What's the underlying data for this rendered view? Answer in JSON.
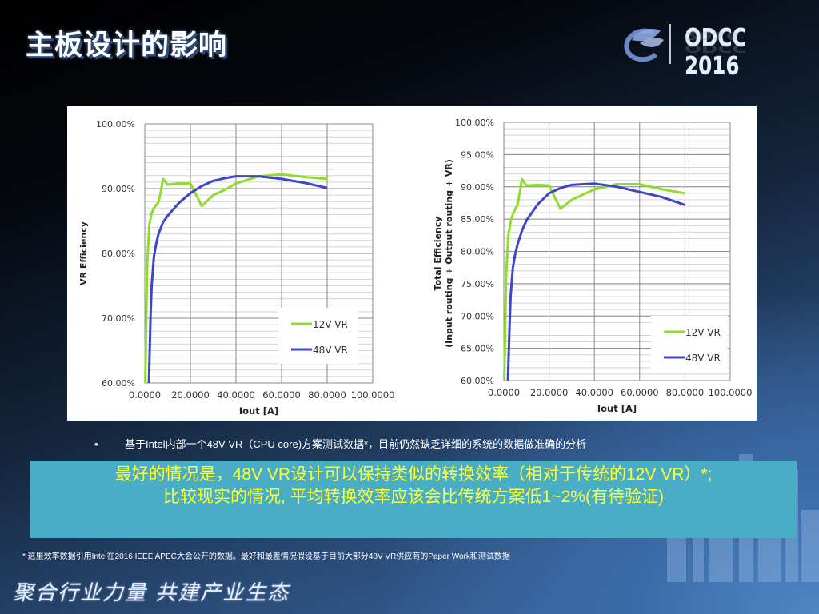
{
  "slide": {
    "title": "主板设计的影响",
    "logo_text": "ODCC 2016",
    "bullet": "基于Intel内部一个48V VR（CPU core)方案测试数据*，目前仍然缺乏详细的系统的数据做准确的分析",
    "highlight_line1": "最好的情况是，48V VR设计可以保持类似的转换效率（相对于传统的12V VR）*;",
    "highlight_line2": "比较现实的情况, 平均转换效率应该会比传统方案低1~2%(有待验证)",
    "footnote": "* 这里效率数据引用Intel在2016 IEEE APEC大会公开的数据。最好和最差情况假设基于目前大部分48V VR供应商的Paper Work和测试数据",
    "slogan": "聚合行业力量  共建产业生态"
  },
  "colors": {
    "series_12v": "#8fdc2a",
    "series_48v": "#3f45c8",
    "highlight_bg": "#49adc6",
    "highlight_text": "#ffff33"
  },
  "chart_data": [
    {
      "type": "line",
      "title": "",
      "xlabel": "Iout [A]",
      "ylabel": "VR Efficiency",
      "xlim": [
        0,
        100
      ],
      "ylim": [
        60,
        100
      ],
      "xticks": [
        "0.0000",
        "20.0000",
        "40.0000",
        "60.0000",
        "80.0000",
        "100.0000"
      ],
      "yticks": [
        "60.00%",
        "70.00%",
        "80.00%",
        "90.00%",
        "100.00%"
      ],
      "grid": true,
      "legend": {
        "position": "lower right",
        "entries": [
          "12V  VR",
          "48V  VR"
        ]
      },
      "series": [
        {
          "name": "12V  VR",
          "x": [
            0.2,
            1,
            2,
            3,
            4,
            5,
            6,
            7,
            8,
            10,
            15,
            20,
            25,
            30,
            35,
            40,
            50,
            60,
            70,
            80
          ],
          "y": [
            60,
            78,
            84.5,
            86.2,
            87,
            87.5,
            87.9,
            89.5,
            91.5,
            90.6,
            90.8,
            90.8,
            87.3,
            89,
            89.8,
            90.8,
            91.9,
            92.2,
            91.8,
            91.5
          ]
        },
        {
          "name": "48V  VR",
          "x": [
            1.8,
            2.5,
            3,
            4,
            5,
            6,
            8,
            10,
            15,
            20,
            25,
            30,
            35,
            40,
            50,
            60,
            70,
            80
          ],
          "y": [
            60,
            70,
            75,
            79.5,
            81.5,
            83,
            84.8,
            85.8,
            87.8,
            89.3,
            90.4,
            91.2,
            91.6,
            91.9,
            91.9,
            91.5,
            90.9,
            90.1
          ]
        }
      ]
    },
    {
      "type": "line",
      "title": "",
      "xlabel": "Iout [A]",
      "ylabel": "Total Efficiency\n(Input routing + Output routing + VR)",
      "xlim": [
        0,
        100
      ],
      "ylim": [
        60,
        100
      ],
      "xticks": [
        "0.0000",
        "20.0000",
        "40.0000",
        "60.0000",
        "80.0000",
        "100.0000"
      ],
      "yticks": [
        "60.00%",
        "65.00%",
        "70.00%",
        "75.00%",
        "80.00%",
        "85.00%",
        "90.00%",
        "95.00%",
        "100.00%"
      ],
      "grid": true,
      "legend": {
        "position": "lower right",
        "entries": [
          "12V  VR",
          "48V  VR"
        ]
      },
      "series": [
        {
          "name": "12V  VR",
          "x": [
            0.2,
            1,
            2,
            3,
            4,
            5,
            6,
            7,
            8,
            10,
            15,
            20,
            25,
            30,
            35,
            40,
            50,
            60,
            70,
            80
          ],
          "y": [
            60,
            76,
            82.5,
            84.5,
            85.8,
            86.5,
            87.2,
            89,
            91.2,
            90.2,
            90.3,
            90.2,
            86.6,
            88,
            88.8,
            89.6,
            90.4,
            90.4,
            89.6,
            89
          ]
        },
        {
          "name": "48V  VR",
          "x": [
            1.8,
            2.5,
            3,
            4,
            5,
            6,
            8,
            10,
            15,
            20,
            25,
            30,
            35,
            40,
            50,
            60,
            70,
            80
          ],
          "y": [
            60,
            68,
            73,
            77.5,
            79.5,
            81,
            83.2,
            84.8,
            87.3,
            89,
            89.8,
            90.3,
            90.4,
            90.5,
            90.0,
            89.2,
            88.4,
            87.2
          ]
        }
      ]
    }
  ]
}
